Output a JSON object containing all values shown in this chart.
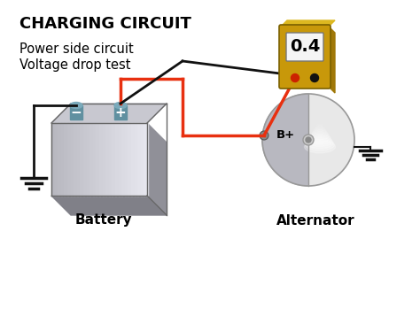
{
  "title": "CHARGING CIRCUIT",
  "subtitle_line1": "Power side circuit",
  "subtitle_line2": "Voltage drop test",
  "meter_value": "0.4",
  "battery_label": "Battery",
  "alternator_label": "Alternator",
  "bp_label": "B+",
  "bg_color": "#ffffff",
  "title_color": "#000000",
  "subtitle_color": "#000000",
  "terminal_color": "#6090a0",
  "terminal_top_color": "#7aaabb",
  "meter_body_color": "#c8980a",
  "meter_body_dark": "#a07808",
  "meter_body_top": "#ddb820",
  "meter_screen_color": "#f5f5f5",
  "meter_screen_border": "#777777",
  "wire_red_color": "#e83010",
  "wire_black_color": "#111111",
  "alternator_right_color": "#e8e8e8",
  "alternator_left_color": "#b8b8c0",
  "alternator_edge_color": "#999999",
  "ground_color": "#111111",
  "battery_front_light": "#d8d8e0",
  "battery_front_mid": "#b8b8c0",
  "battery_right_face": "#909098",
  "battery_bottom_face": "#808088",
  "battery_top_face": "#c8c8d0",
  "probe_red": "#cc2200",
  "probe_black": "#111111",
  "bplus_dot_color": "#888888"
}
